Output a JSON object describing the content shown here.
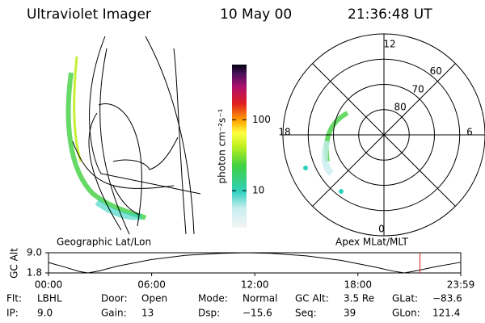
{
  "header": {
    "title": "Ultraviolet Imager",
    "date": "10 May 00",
    "time": "21:36:48 UT"
  },
  "geo_panel": {
    "label": "Geographic Lat/Lon"
  },
  "colorbar": {
    "axis_label": "photon cm⁻²s⁻¹",
    "log": true,
    "ylim": [
      3,
      600
    ],
    "yticks": [
      10,
      100
    ]
  },
  "polar_panel": {
    "label": "Apex MLat/MLT",
    "lat_lim": [
      90,
      50
    ],
    "lat_rings": [
      80,
      70,
      60
    ],
    "mlt_labels": {
      "top": "12",
      "left": "18",
      "right": "6",
      "bottom": "0"
    }
  },
  "altitude_plot": {
    "axis_label": "GC Alt",
    "ylim": [
      1.8,
      9
    ],
    "yticks": [
      {
        "value": 9,
        "label": "9.0"
      },
      1.8
    ],
    "xlim": [
      0,
      23.983
    ],
    "xticks": [
      {
        "value": 0,
        "label": "00:00"
      },
      {
        "value": 6,
        "label": "06:00"
      },
      {
        "value": 12,
        "label": "12:00"
      },
      {
        "value": 18,
        "label": "18:00"
      },
      {
        "value": 23.983,
        "label": "23:59"
      }
    ],
    "x": [
      0,
      1,
      1.8,
      2.3,
      3,
      4,
      6,
      8,
      10,
      11.5,
      13,
      15,
      17,
      19,
      20,
      20.7,
      21.5,
      22.5,
      23.983
    ],
    "values": [
      5.5,
      3.8,
      2.3,
      1.8,
      2.6,
      4.2,
      6.6,
      8.1,
      8.8,
      9,
      8.8,
      7.9,
      6.3,
      3.9,
      2.5,
      1.8,
      2.7,
      4.0,
      5.6
    ],
    "marker": 21.61
  },
  "status": [
    [
      {
        "label": "Flt:",
        "value": "LBHL"
      },
      {
        "label": "Door:",
        "value": "Open"
      },
      {
        "label": "Mode:",
        "value": "Normal"
      },
      {
        "label": "GC Alt:",
        "value": "3.5 Re"
      },
      {
        "label": "GLat:",
        "value": "−83.6"
      }
    ],
    [
      {
        "label": "IP:",
        "value": "9.0"
      },
      {
        "label": "Gain:",
        "value": "13"
      },
      {
        "label": "Dsp:",
        "value": "−15.6"
      },
      {
        "label": "Seq:",
        "value": "39"
      },
      {
        "label": "GLon:",
        "value": "121.4"
      }
    ]
  ]
}
